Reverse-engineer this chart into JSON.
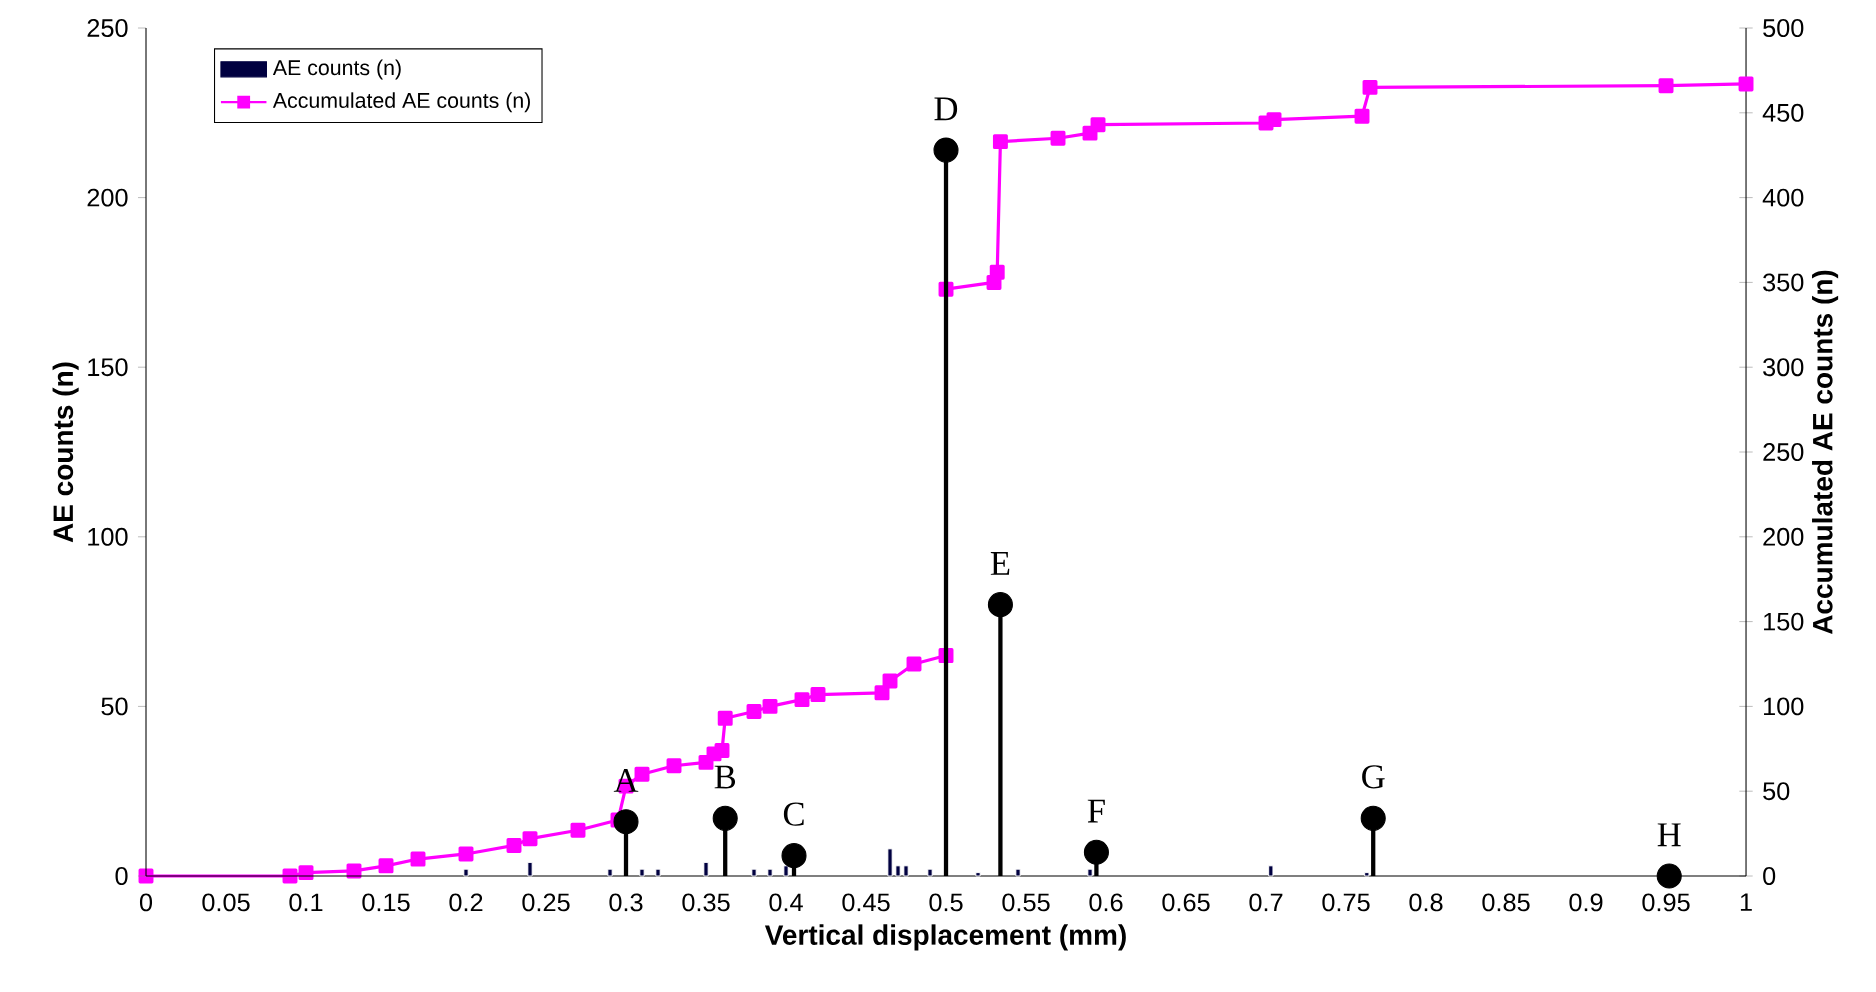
{
  "chart_data": {
    "type": "bar",
    "xlabel": "Vertical displacement (mm)",
    "ylabel": "AE counts (n)",
    "y2label": "Accumulated AE counts (n)",
    "xlim": [
      0,
      1
    ],
    "xticks": [
      0,
      0.05,
      0.1,
      0.15,
      0.2,
      0.25,
      0.3,
      0.35,
      0.4,
      0.45,
      0.5,
      0.55,
      0.6,
      0.65,
      0.7,
      0.75,
      0.8,
      0.85,
      0.9,
      0.95,
      1
    ],
    "ylim": [
      0,
      250
    ],
    "yticks": [
      0,
      50,
      100,
      150,
      200,
      250
    ],
    "y2lim": [
      0,
      500
    ],
    "y2ticks": [
      0,
      50,
      100,
      150,
      200,
      250,
      300,
      350,
      400,
      450,
      500
    ],
    "legend": "top left",
    "series": [
      {
        "type": "lollipop",
        "color": "#000000",
        "marker": "circle",
        "x": [
          0.3,
          0.362,
          0.405,
          0.5,
          0.534,
          0.594,
          0.767,
          0.952
        ],
        "values": [
          16,
          17,
          6,
          214,
          80,
          7,
          17,
          0
        ]
      },
      {
        "name": "AE counts (n)",
        "color": "#000040",
        "x": [
          0.2,
          0.24,
          0.29,
          0.31,
          0.32,
          0.35,
          0.38,
          0.39,
          0.4,
          0.465,
          0.47,
          0.475,
          0.49,
          0.52,
          0.545,
          0.59,
          0.703,
          0.763
        ],
        "values": [
          2,
          4,
          2,
          2,
          2,
          4,
          2,
          2,
          3,
          8,
          3,
          3,
          2,
          1,
          2,
          2,
          3,
          1
        ]
      },
      {
        "name": "Accumulated AE counts (n)",
        "type": "line",
        "axis": "y2",
        "color": "#ff00ff",
        "marker": "square",
        "x": [
          0,
          0.09,
          0.1,
          0.13,
          0.15,
          0.17,
          0.2,
          0.23,
          0.24,
          0.27,
          0.295,
          0.3,
          0.31,
          0.33,
          0.35,
          0.355,
          0.36,
          0.362,
          0.38,
          0.39,
          0.41,
          0.42,
          0.46,
          0.465,
          0.48,
          0.5,
          0.5,
          0.53,
          0.532,
          0.534,
          0.57,
          0.59,
          0.595,
          0.7,
          0.705,
          0.76,
          0.765,
          0.95,
          1
        ],
        "values": [
          0,
          0,
          2,
          3,
          6,
          10,
          13,
          18,
          22,
          27,
          33,
          53,
          60,
          65,
          67,
          72,
          74,
          93,
          97,
          100,
          104,
          107,
          108,
          115,
          125,
          130,
          346,
          350,
          356,
          433,
          435,
          438,
          443,
          444,
          446,
          448,
          465,
          466,
          467
        ]
      }
    ],
    "annotations": [
      {
        "text": "A",
        "x": 0.3,
        "y": 16
      },
      {
        "text": "B",
        "x": 0.362,
        "y": 17
      },
      {
        "text": "C",
        "x": 0.405,
        "y": 6
      },
      {
        "text": "D",
        "x": 0.5,
        "y": 214
      },
      {
        "text": "E",
        "x": 0.534,
        "y": 80
      },
      {
        "text": "F",
        "x": 0.594,
        "y": 7
      },
      {
        "text": "G",
        "x": 0.767,
        "y": 17
      },
      {
        "text": "H",
        "x": 0.952,
        "y": 0
      }
    ]
  }
}
